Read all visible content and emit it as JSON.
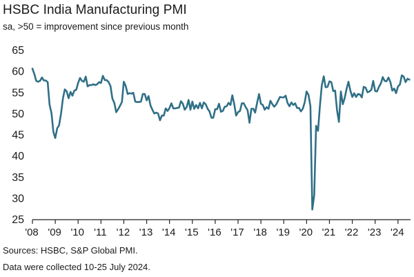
{
  "title": "HSBC India Manufacturing PMI",
  "subtitle": "sa, >50 = improvement since previous month",
  "source": "Sources: HSBC, S&P Global PMI.",
  "note": "Data were collected 10-25 July 2024.",
  "colors": {
    "line": "#2f6f86",
    "axis": "#222222",
    "text": "#1a1a1a"
  },
  "chart_data": {
    "type": "line",
    "title": "HSBC India Manufacturing PMI",
    "ylabel": "sa, >50 = improvement since previous month",
    "xlabel": "",
    "ylim": [
      25,
      65
    ],
    "xlim": [
      2008.0,
      2024.55
    ],
    "yticks": [
      25,
      30,
      35,
      40,
      45,
      50,
      55,
      60,
      65
    ],
    "xticks": [
      {
        "value": 2008,
        "label": "'08"
      },
      {
        "value": 2009,
        "label": "'09"
      },
      {
        "value": 2010,
        "label": "'10"
      },
      {
        "value": 2011,
        "label": "'11"
      },
      {
        "value": 2012,
        "label": "'12"
      },
      {
        "value": 2013,
        "label": "'13"
      },
      {
        "value": 2014,
        "label": "'14"
      },
      {
        "value": 2015,
        "label": "'15"
      },
      {
        "value": 2016,
        "label": "'16"
      },
      {
        "value": 2017,
        "label": "'17"
      },
      {
        "value": 2018,
        "label": "'18"
      },
      {
        "value": 2019,
        "label": "'19"
      },
      {
        "value": 2020,
        "label": "'20"
      },
      {
        "value": 2021,
        "label": "'21"
      },
      {
        "value": 2022,
        "label": "'22"
      },
      {
        "value": 2023,
        "label": "'23"
      },
      {
        "value": 2024,
        "label": "'24"
      }
    ],
    "series": [
      {
        "name": "HSBC India Manufacturing PMI",
        "start": "2008-01",
        "values": [
          60.7,
          59.4,
          57.8,
          57.6,
          57.8,
          58.6,
          57.9,
          57.9,
          57.5,
          52.2,
          50.2,
          45.7,
          44.3,
          46.6,
          47.3,
          50.0,
          53.5,
          55.8,
          55.3,
          53.7,
          55.2,
          54.3,
          55.5,
          55.7,
          57.3,
          58.5,
          57.8,
          57.6,
          58.8,
          56.5,
          56.8,
          56.8,
          57.0,
          56.8,
          57.0,
          57.5,
          57.3,
          59.0,
          58.0,
          58.0,
          57.5,
          56.6,
          53.6,
          52.6,
          50.4,
          51.1,
          51.9,
          52.8,
          57.6,
          56.6,
          54.7,
          54.9,
          54.8,
          55.0,
          52.9,
          52.8,
          52.8,
          52.9,
          54.7,
          54.7,
          53.2,
          54.2,
          52.0,
          51.0,
          50.1,
          50.3,
          50.1,
          48.5,
          49.6,
          49.6,
          51.3,
          50.7,
          51.4,
          52.5,
          51.3,
          51.3,
          51.4,
          51.5,
          53.0,
          52.4,
          51.0,
          51.6,
          53.3,
          51.0,
          52.9,
          51.2,
          52.1,
          51.3,
          52.6,
          51.3,
          52.7,
          52.3,
          51.2,
          50.6,
          49.1,
          49.1,
          51.1,
          51.1,
          52.4,
          50.5,
          50.7,
          51.7,
          51.8,
          52.6,
          52.1,
          54.4,
          52.3,
          49.6,
          50.4,
          50.7,
          52.5,
          52.5,
          51.6,
          50.9,
          47.9,
          51.2,
          51.2,
          50.3,
          52.6,
          54.7,
          52.4,
          52.1,
          51.0,
          51.6,
          51.2,
          53.1,
          52.3,
          51.7,
          52.2,
          53.1,
          54.0,
          53.9,
          53.9,
          54.3,
          52.6,
          51.8,
          52.7,
          52.1,
          52.5,
          51.4,
          51.4,
          50.6,
          51.2,
          52.7,
          55.3,
          54.5,
          51.8,
          27.4,
          30.8,
          47.2,
          46.0,
          52.0,
          56.8,
          58.9,
          56.3,
          56.4,
          57.7,
          57.5,
          55.4,
          55.5,
          50.8,
          48.1,
          55.3,
          52.3,
          53.7,
          55.9,
          57.6,
          55.5,
          54.0,
          54.9,
          54.0,
          54.7,
          54.6,
          53.9,
          56.4,
          56.2,
          55.1,
          55.3,
          55.7,
          57.8,
          55.4,
          55.3,
          56.4,
          57.2,
          58.7,
          57.8,
          57.7,
          58.6,
          57.5,
          55.5,
          56.0,
          54.9,
          56.5,
          56.9,
          59.1,
          58.8,
          57.5,
          58.3,
          58.1
        ]
      }
    ]
  }
}
